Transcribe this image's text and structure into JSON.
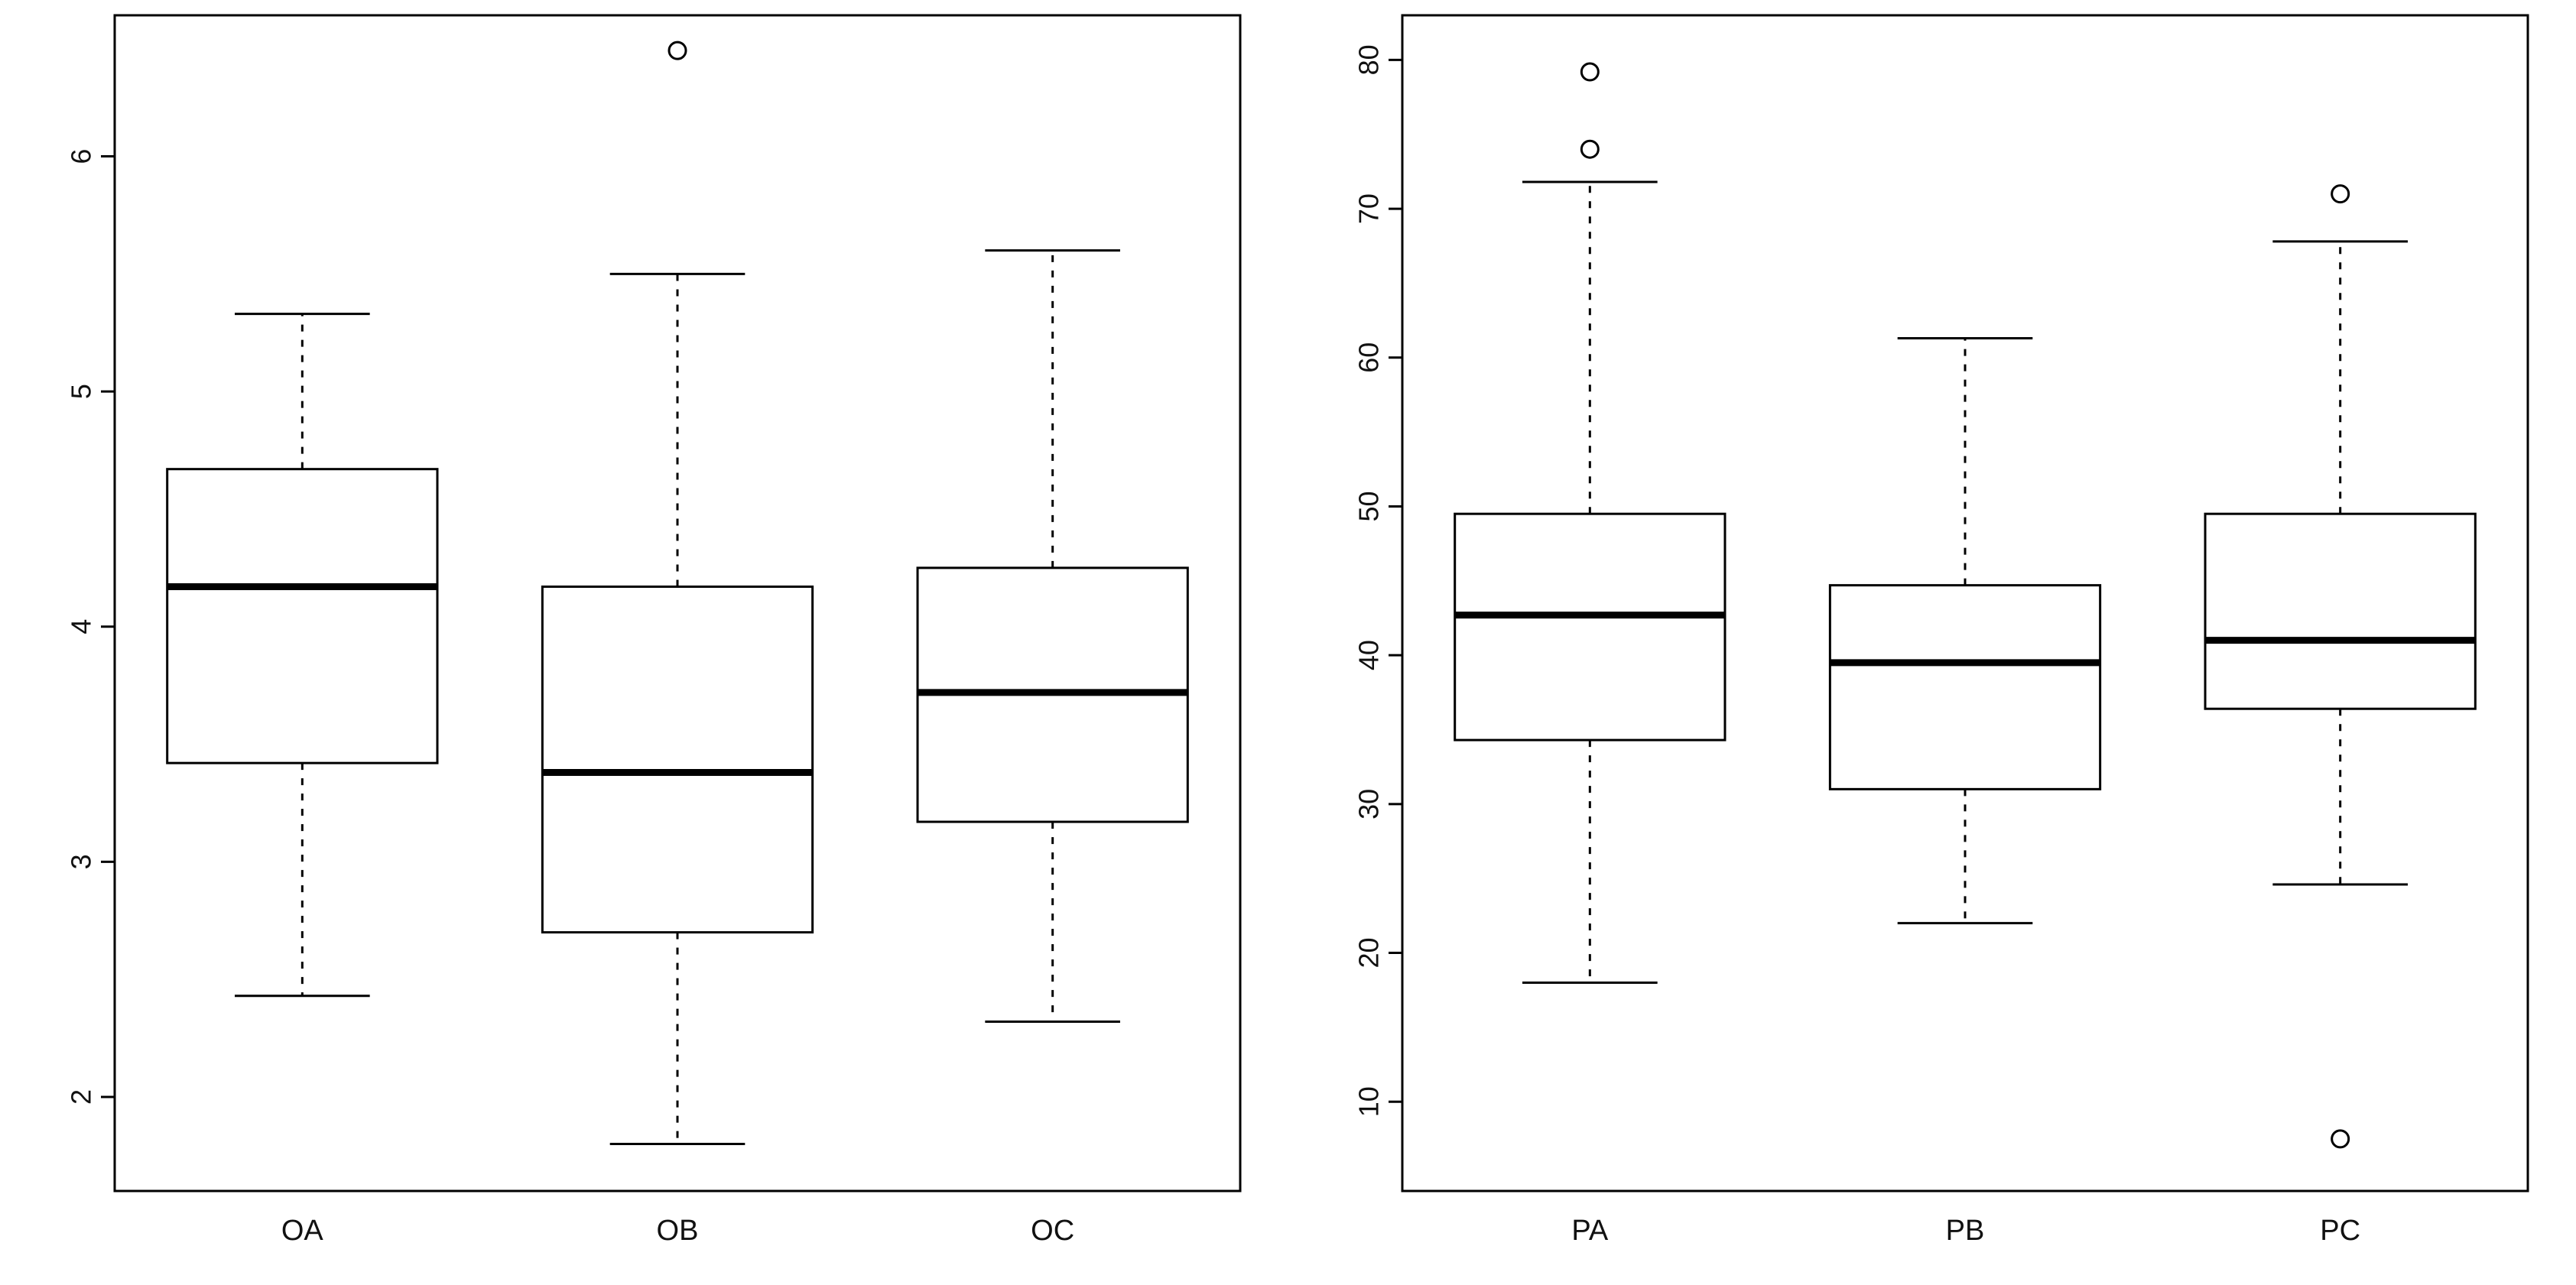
{
  "page": {
    "background": "#ffffff",
    "line_color": "#000000"
  },
  "chart_data": [
    {
      "type": "boxplot",
      "title": "",
      "xlabel": "",
      "ylabel": "",
      "categories": [
        "OA",
        "OB",
        "OC"
      ],
      "ylim": [
        1.6,
        6.6
      ],
      "yticks": [
        2,
        3,
        4,
        5,
        6
      ],
      "grid": false,
      "legend": "none",
      "boxes": [
        {
          "label": "OA",
          "whisker_low": 2.43,
          "q1": 3.42,
          "median": 4.17,
          "q3": 4.67,
          "whisker_high": 5.33,
          "outliers": []
        },
        {
          "label": "OB",
          "whisker_low": 1.8,
          "q1": 2.7,
          "median": 3.38,
          "q3": 4.17,
          "whisker_high": 5.5,
          "outliers": [
            6.45
          ]
        },
        {
          "label": "OC",
          "whisker_low": 2.32,
          "q1": 3.17,
          "median": 3.72,
          "q3": 4.25,
          "whisker_high": 5.6,
          "outliers": []
        }
      ]
    },
    {
      "type": "boxplot",
      "title": "",
      "xlabel": "",
      "ylabel": "",
      "categories": [
        "PA",
        "PB",
        "PC"
      ],
      "ylim": [
        4,
        83
      ],
      "yticks": [
        10,
        20,
        30,
        40,
        50,
        60,
        70,
        80
      ],
      "grid": false,
      "legend": "none",
      "boxes": [
        {
          "label": "PA",
          "whisker_low": 18.0,
          "q1": 34.3,
          "median": 42.7,
          "q3": 49.5,
          "whisker_high": 71.8,
          "outliers": [
            74.0,
            79.2
          ]
        },
        {
          "label": "PB",
          "whisker_low": 22.0,
          "q1": 31.0,
          "median": 39.5,
          "q3": 44.7,
          "whisker_high": 61.3,
          "outliers": []
        },
        {
          "label": "PC",
          "whisker_low": 24.6,
          "q1": 36.4,
          "median": 41.0,
          "q3": 49.5,
          "whisker_high": 67.8,
          "outliers": [
            71.0,
            7.5
          ]
        }
      ]
    }
  ]
}
